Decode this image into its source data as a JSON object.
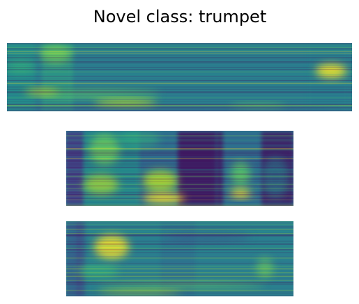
{
  "title": "Novel class: trumpet"
}
